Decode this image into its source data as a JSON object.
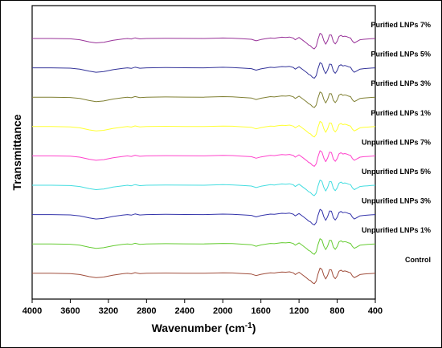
{
  "chart_data": {
    "type": "line",
    "xlabel": "Wavenumber (cm",
    "xlabel_sup": "-1",
    "xlabel_end": ")",
    "ylabel": "Transmittance",
    "xlim": [
      4000,
      400
    ],
    "x_reversed": true,
    "x_ticks": [
      "4000",
      "3600",
      "3200",
      "2800",
      "2400",
      "2000",
      "1600",
      "1200",
      "800",
      "400"
    ],
    "x_tick_values": [
      4000,
      3600,
      3200,
      2800,
      2400,
      2000,
      1600,
      1200,
      800,
      400
    ],
    "y_ticks_shown": false,
    "grid": false,
    "legend": "labels-above-each-curve",
    "series": [
      {
        "name": "Purified LNPs 7%",
        "color": "#993399"
      },
      {
        "name": "Purified LNPs 5%",
        "color": "#333399"
      },
      {
        "name": "Purified LNPs 3%",
        "color": "#808033"
      },
      {
        "name": "Purified LNPs 1%",
        "color": "#ffff33"
      },
      {
        "name": "Unpurified LNPs 7%",
        "color": "#ff44cc"
      },
      {
        "name": "Unpurified LNPs 5%",
        "color": "#44dde0"
      },
      {
        "name": "Unpurified LNPs 3%",
        "color": "#3333aa"
      },
      {
        "name": "Unpurified LNPs 1%",
        "color": "#66cc33"
      },
      {
        "name": "Control",
        "color": "#a04e3c"
      }
    ],
    "spectrum_shape_note": "relative transmittance profile shared by all series (offset vertically)",
    "profile_x": [
      4000,
      3800,
      3600,
      3500,
      3400,
      3330,
      3250,
      3150,
      3050,
      3000,
      2960,
      2920,
      2870,
      2800,
      2600,
      2400,
      2200,
      2000,
      1900,
      1800,
      1700,
      1650,
      1600,
      1550,
      1500,
      1460,
      1420,
      1380,
      1340,
      1300,
      1260,
      1240,
      1200,
      1160,
      1120,
      1100,
      1080,
      1060,
      1040,
      1020,
      1000,
      980,
      960,
      940,
      920,
      900,
      880,
      860,
      840,
      820,
      800,
      780,
      760,
      740,
      720,
      700,
      680,
      660,
      640,
      620,
      600,
      560,
      520,
      480,
      440,
      400
    ],
    "profile_y": [
      0,
      0,
      0.03,
      0.12,
      0.32,
      0.42,
      0.36,
      0.18,
      0.05,
      0.0,
      0.05,
      -0.06,
      0.04,
      0.0,
      -0.02,
      -0.01,
      0.0,
      -0.05,
      -0.03,
      0.02,
      0.08,
      0.22,
      0.1,
      0.02,
      -0.05,
      -0.02,
      -0.08,
      -0.12,
      -0.1,
      -0.14,
      -0.04,
      0.12,
      -0.1,
      0.18,
      0.45,
      0.62,
      0.7,
      0.9,
      1.0,
      0.75,
      0.05,
      -0.5,
      -0.38,
      0.2,
      0.55,
      0.2,
      -0.35,
      -0.32,
      0.3,
      0.52,
      0.25,
      -0.2,
      -0.3,
      -0.18,
      -0.22,
      -0.18,
      -0.1,
      -0.05,
      0.25,
      0.42,
      0.32,
      0.12,
      0.08,
      0.05,
      0.02,
      0.0
    ]
  }
}
